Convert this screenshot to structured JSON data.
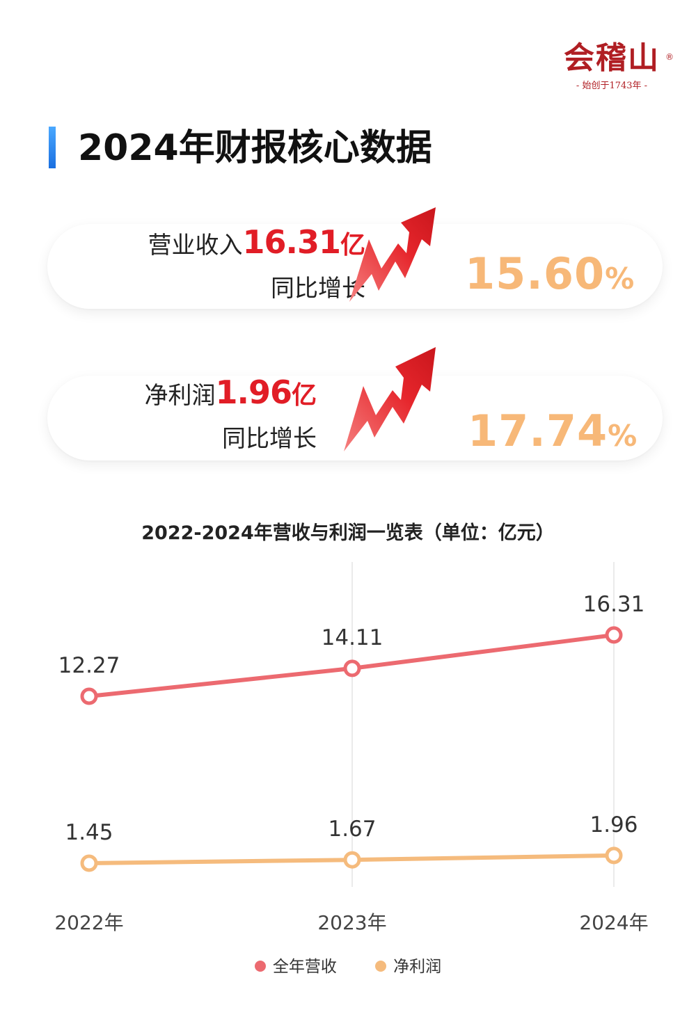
{
  "brand": {
    "name": "会稽山",
    "registered": "®",
    "tagline": "- 始创于1743年 -"
  },
  "page_title": "2024年财报核心数据",
  "stats": [
    {
      "label": "营业收入",
      "value": "16.31",
      "unit": "亿",
      "growth_label": "同比增长",
      "growth_value": "15.60",
      "growth_unit": "%"
    },
    {
      "label": "净利润",
      "value": "1.96",
      "unit": "亿",
      "growth_label": "同比增长",
      "growth_value": "17.74",
      "growth_unit": "%"
    }
  ],
  "colors": {
    "revenue": "#ec6a70",
    "profit": "#f5bb7d",
    "accent_red": "#e11d26",
    "pct_orange": "#f7b878"
  },
  "chart_data": {
    "type": "line",
    "title": "2022-2024年营收与利润一览表（单位：亿元）",
    "categories": [
      "2022年",
      "2023年",
      "2024年"
    ],
    "series": [
      {
        "name": "全年营收",
        "values": [
          12.27,
          14.11,
          16.31
        ],
        "labels": [
          "12.27",
          "14.11",
          "16.31"
        ],
        "color": "#ec6a70"
      },
      {
        "name": "净利润",
        "values": [
          1.45,
          1.67,
          1.96
        ],
        "labels": [
          "1.45",
          "1.67",
          "1.96"
        ],
        "color": "#f5bb7d"
      }
    ],
    "grid": "vertical",
    "legend_position": "bottom"
  }
}
